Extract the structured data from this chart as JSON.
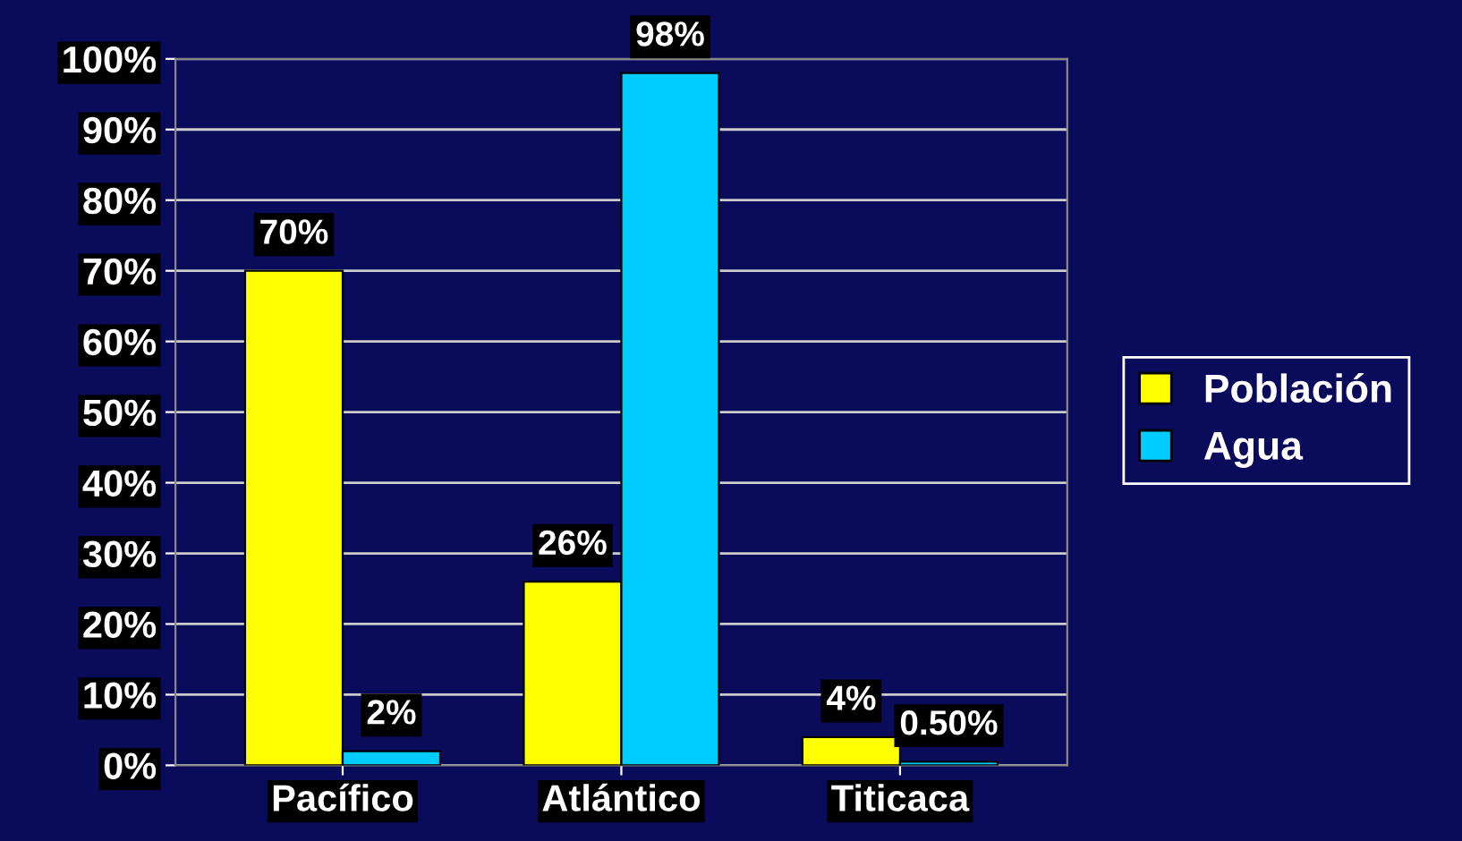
{
  "chart_data": {
    "type": "bar",
    "categories": [
      "Pacífico",
      "Atlántico",
      "Titicaca"
    ],
    "series": [
      {
        "name": "Población",
        "color": "#ffff00",
        "values": [
          70,
          26,
          4
        ],
        "value_labels": [
          "70%",
          "26%",
          "4%"
        ]
      },
      {
        "name": "Agua",
        "color": "#00ccff",
        "values": [
          2,
          98,
          0.5
        ],
        "value_labels": [
          "2%",
          "98%",
          "0.50%"
        ]
      }
    ],
    "ylim": [
      0,
      100
    ],
    "yticks": [
      {
        "value": 0,
        "label": "0%"
      },
      {
        "value": 10,
        "label": "10%"
      },
      {
        "value": 20,
        "label": "20%"
      },
      {
        "value": 30,
        "label": "30%"
      },
      {
        "value": 40,
        "label": "40%"
      },
      {
        "value": 50,
        "label": "50%"
      },
      {
        "value": 60,
        "label": "60%"
      },
      {
        "value": 70,
        "label": "70%"
      },
      {
        "value": 80,
        "label": "80%"
      },
      {
        "value": 90,
        "label": "90%"
      },
      {
        "value": 100,
        "label": "100%"
      }
    ],
    "grid": "y",
    "legend": "right"
  }
}
